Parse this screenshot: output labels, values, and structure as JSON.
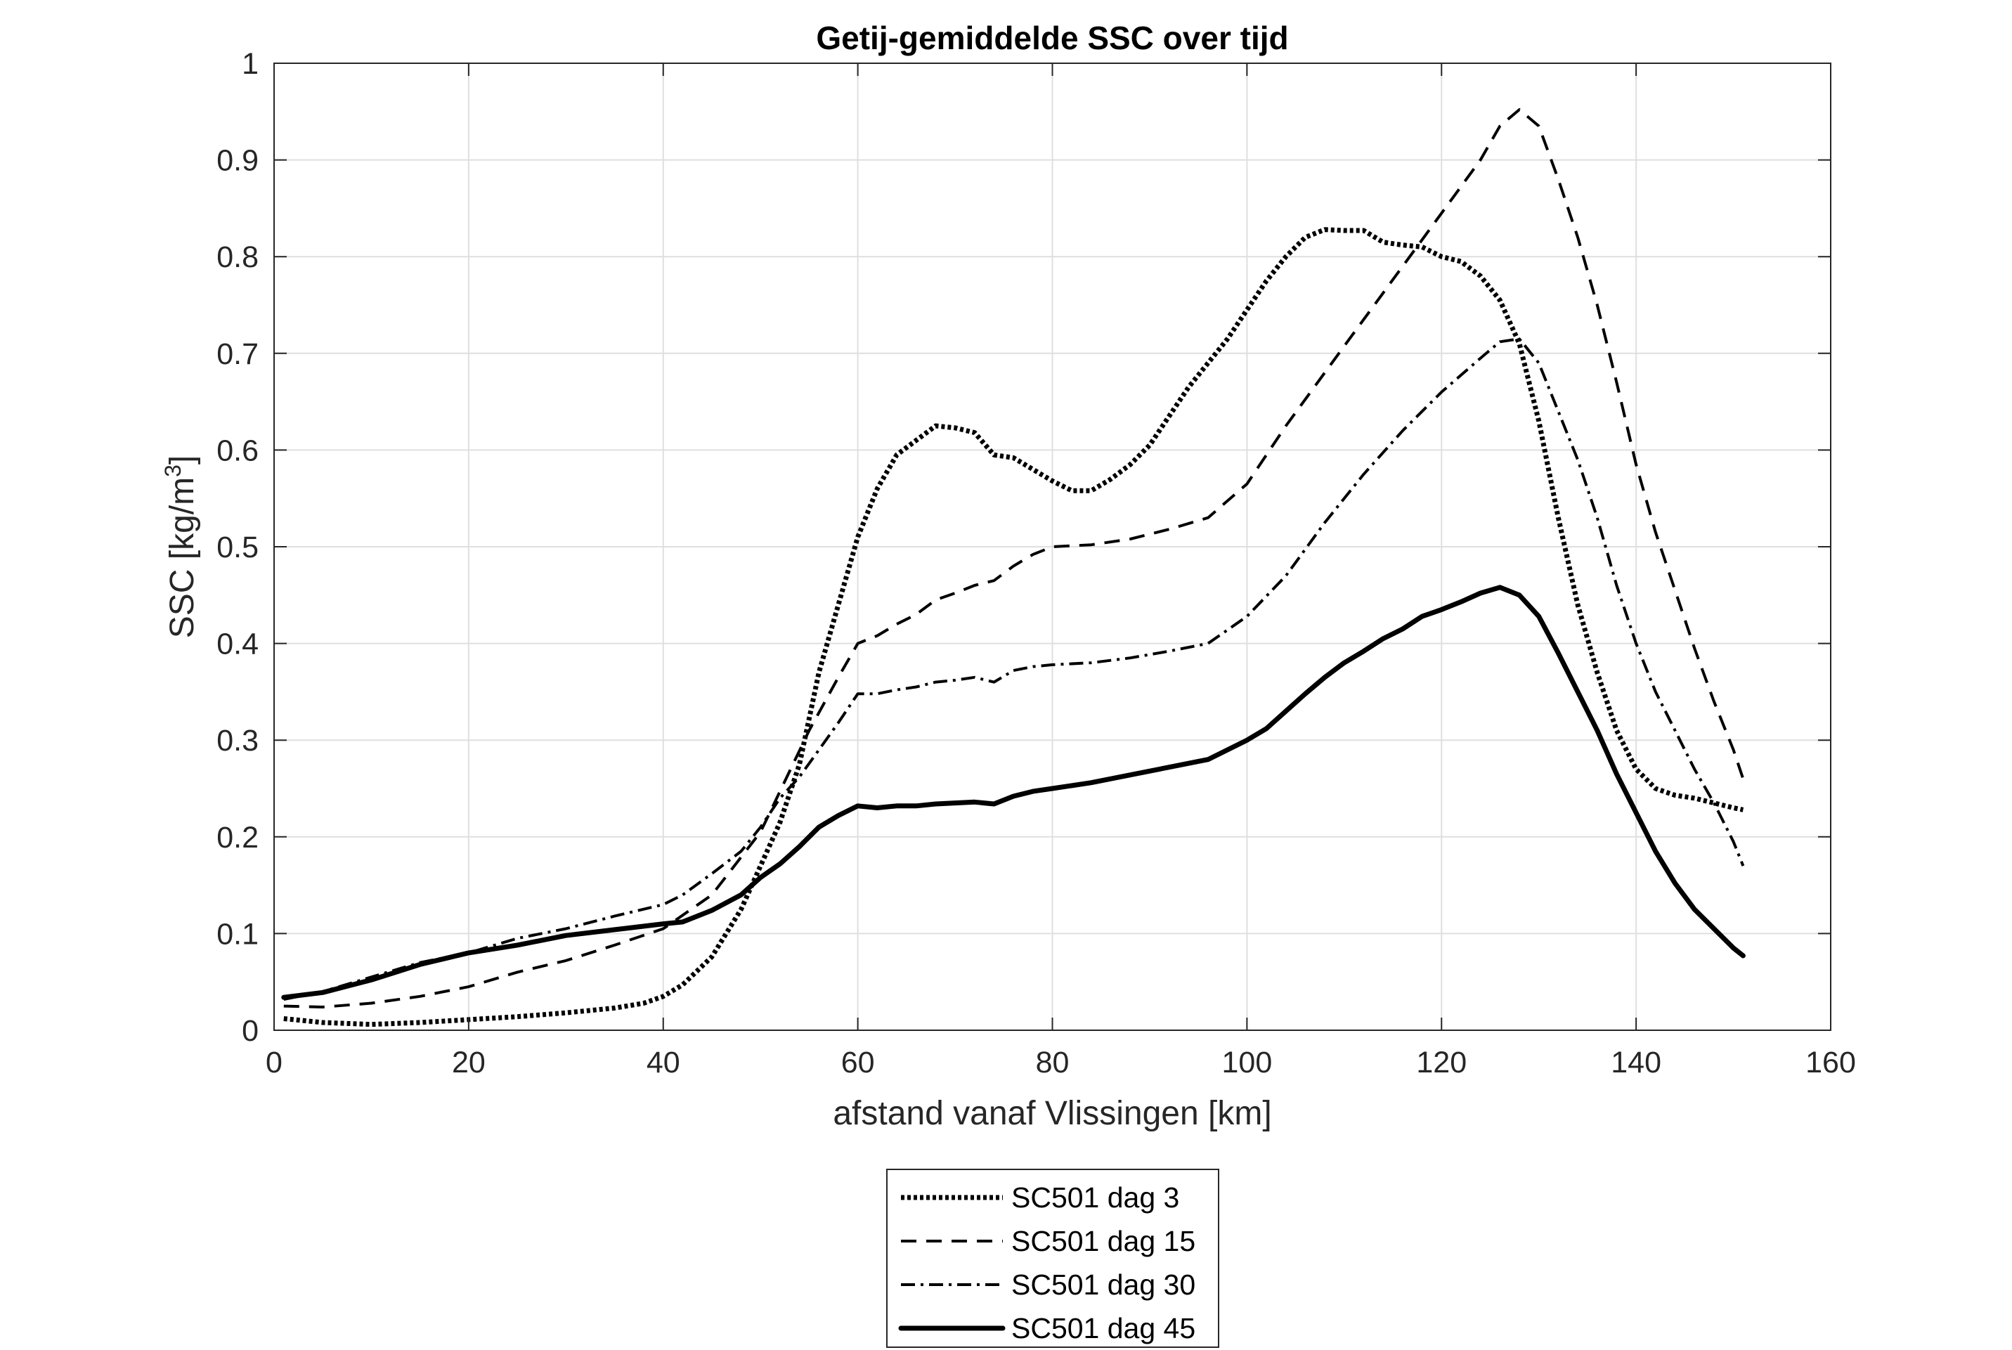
{
  "chart_data": {
    "type": "line",
    "title": "Getij-gemiddelde SSC over tijd",
    "xlabel": "afstand vanaf Vlissingen [km]",
    "ylabel_main": "SSC [kg/m",
    "ylabel_sup": "3",
    "ylabel_end": "]",
    "xlim": [
      0,
      160
    ],
    "ylim": [
      0,
      1
    ],
    "xticks": [
      0,
      20,
      40,
      60,
      80,
      100,
      120,
      140,
      160
    ],
    "yticks": [
      0,
      0.1,
      0.2,
      0.3,
      0.4,
      0.5,
      0.6,
      0.7,
      0.8,
      0.9,
      1
    ],
    "xtick_labels": [
      "0",
      "20",
      "40",
      "60",
      "80",
      "100",
      "120",
      "140",
      "160"
    ],
    "ytick_labels": [
      "0",
      "0.1",
      "0.2",
      "0.3",
      "0.4",
      "0.5",
      "0.6",
      "0.7",
      "0.8",
      "0.9",
      "1"
    ],
    "grid": true,
    "legend_position": "bottom-center",
    "series": [
      {
        "name": "SC501 dag 3",
        "style": "dotted",
        "color": "#000000",
        "x": [
          1,
          5,
          10,
          15,
          20,
          25,
          30,
          35,
          38,
          40,
          42,
          45,
          48,
          50,
          52,
          54,
          56,
          58,
          60,
          62,
          64,
          66,
          68,
          70,
          72,
          74,
          76,
          78,
          80,
          82,
          84,
          86,
          88,
          90,
          92,
          94,
          96,
          98,
          100,
          102,
          104,
          106,
          108,
          110,
          112,
          114,
          116,
          118,
          120,
          122,
          124,
          126,
          128,
          130,
          132,
          134,
          136,
          138,
          140,
          142,
          144,
          146,
          148,
          150,
          151
        ],
        "y": [
          0.012,
          0.008,
          0.006,
          0.008,
          0.011,
          0.014,
          0.018,
          0.023,
          0.028,
          0.035,
          0.047,
          0.076,
          0.125,
          0.17,
          0.215,
          0.275,
          0.37,
          0.44,
          0.51,
          0.56,
          0.595,
          0.61,
          0.625,
          0.623,
          0.618,
          0.595,
          0.592,
          0.58,
          0.568,
          0.558,
          0.558,
          0.57,
          0.585,
          0.605,
          0.635,
          0.665,
          0.69,
          0.715,
          0.745,
          0.775,
          0.8,
          0.82,
          0.828,
          0.827,
          0.827,
          0.815,
          0.812,
          0.81,
          0.8,
          0.795,
          0.78,
          0.755,
          0.71,
          0.63,
          0.53,
          0.44,
          0.37,
          0.31,
          0.27,
          0.25,
          0.243,
          0.24,
          0.235,
          0.23,
          0.228
        ]
      },
      {
        "name": "SC501 dag 15",
        "style": "dashed",
        "color": "#000000",
        "x": [
          1,
          5,
          10,
          15,
          20,
          25,
          30,
          35,
          40,
          45,
          50,
          55,
          58,
          60,
          62,
          64,
          66,
          68,
          70,
          72,
          74,
          76,
          78,
          80,
          84,
          88,
          92,
          96,
          100,
          104,
          108,
          112,
          116,
          120,
          124,
          126,
          128,
          130,
          132,
          134,
          136,
          138,
          140,
          142,
          144,
          146,
          148,
          150,
          151
        ],
        "y": [
          0.025,
          0.024,
          0.028,
          0.035,
          0.045,
          0.06,
          0.072,
          0.088,
          0.105,
          0.14,
          0.205,
          0.31,
          0.365,
          0.4,
          0.408,
          0.42,
          0.43,
          0.445,
          0.452,
          0.46,
          0.465,
          0.48,
          0.492,
          0.5,
          0.502,
          0.508,
          0.518,
          0.53,
          0.565,
          0.625,
          0.68,
          0.735,
          0.79,
          0.845,
          0.9,
          0.935,
          0.952,
          0.935,
          0.88,
          0.82,
          0.75,
          0.67,
          0.585,
          0.515,
          0.455,
          0.395,
          0.34,
          0.29,
          0.26
        ]
      },
      {
        "name": "SC501 dag 30",
        "style": "dashdot",
        "color": "#000000",
        "x": [
          1,
          5,
          10,
          15,
          20,
          25,
          30,
          35,
          40,
          42,
          45,
          48,
          50,
          52,
          54,
          56,
          58,
          60,
          62,
          64,
          66,
          68,
          70,
          72,
          74,
          76,
          78,
          80,
          84,
          88,
          92,
          96,
          100,
          104,
          108,
          112,
          116,
          120,
          124,
          126,
          128,
          130,
          132,
          134,
          136,
          138,
          140,
          142,
          144,
          146,
          148,
          150,
          151
        ],
        "y": [
          0.032,
          0.04,
          0.055,
          0.07,
          0.08,
          0.095,
          0.105,
          0.118,
          0.13,
          0.14,
          0.162,
          0.185,
          0.21,
          0.24,
          0.262,
          0.29,
          0.318,
          0.348,
          0.348,
          0.352,
          0.355,
          0.36,
          0.362,
          0.365,
          0.36,
          0.372,
          0.376,
          0.378,
          0.38,
          0.385,
          0.392,
          0.4,
          0.428,
          0.47,
          0.525,
          0.575,
          0.62,
          0.66,
          0.695,
          0.712,
          0.715,
          0.69,
          0.64,
          0.59,
          0.53,
          0.46,
          0.4,
          0.35,
          0.31,
          0.27,
          0.235,
          0.195,
          0.17
        ]
      },
      {
        "name": "SC501 dag 45",
        "style": "solid",
        "color": "#000000",
        "x": [
          1,
          5,
          10,
          15,
          20,
          25,
          30,
          35,
          40,
          42,
          45,
          48,
          50,
          52,
          54,
          56,
          58,
          60,
          62,
          64,
          66,
          68,
          70,
          72,
          74,
          76,
          78,
          80,
          84,
          88,
          92,
          96,
          98,
          100,
          102,
          104,
          106,
          108,
          110,
          112,
          114,
          116,
          118,
          120,
          122,
          124,
          126,
          128,
          130,
          132,
          134,
          136,
          138,
          140,
          142,
          144,
          146,
          148,
          150,
          151
        ],
        "y": [
          0.034,
          0.039,
          0.052,
          0.068,
          0.08,
          0.088,
          0.098,
          0.104,
          0.11,
          0.112,
          0.124,
          0.14,
          0.158,
          0.172,
          0.19,
          0.21,
          0.222,
          0.232,
          0.23,
          0.232,
          0.232,
          0.234,
          0.235,
          0.236,
          0.234,
          0.242,
          0.247,
          0.25,
          0.256,
          0.264,
          0.272,
          0.28,
          0.29,
          0.3,
          0.312,
          0.33,
          0.348,
          0.365,
          0.38,
          0.392,
          0.405,
          0.415,
          0.428,
          0.435,
          0.443,
          0.452,
          0.458,
          0.45,
          0.428,
          0.39,
          0.35,
          0.31,
          0.265,
          0.225,
          0.185,
          0.152,
          0.125,
          0.105,
          0.085,
          0.077
        ]
      }
    ]
  }
}
